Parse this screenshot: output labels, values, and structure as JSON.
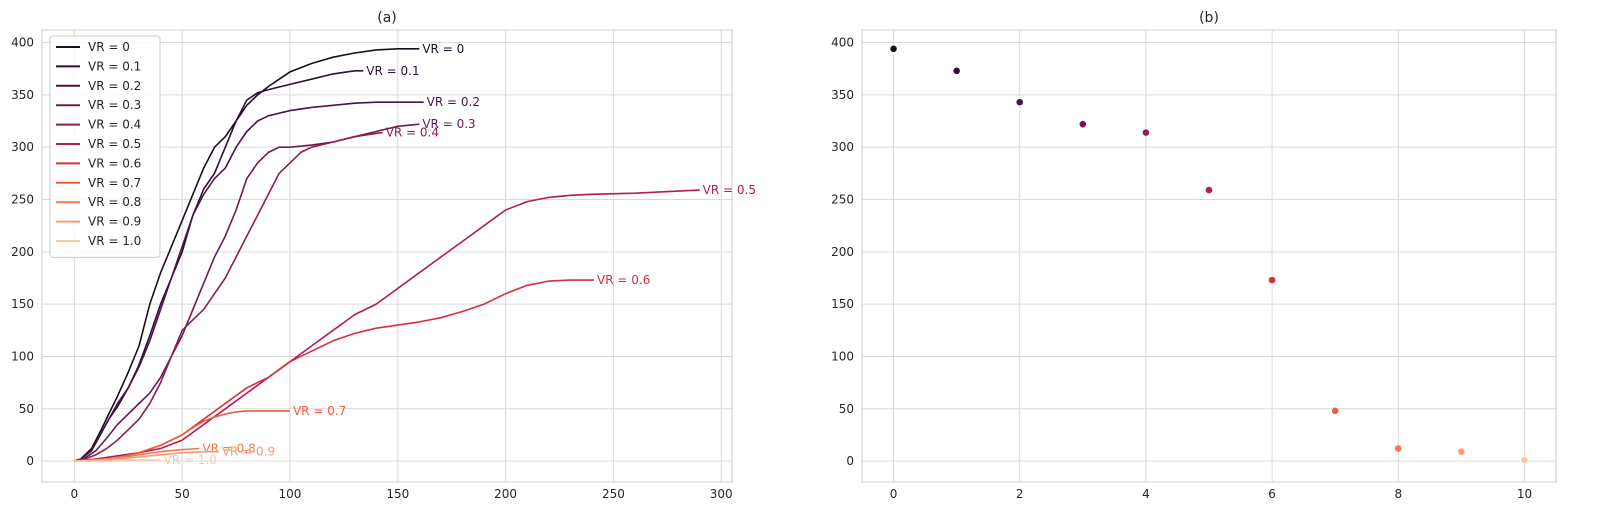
{
  "chart_data": [
    {
      "type": "line",
      "title": "(a)",
      "xlabel": "",
      "ylabel": "",
      "xlim": [
        -15,
        305
      ],
      "ylim": [
        -20,
        412
      ],
      "xticks": [
        0,
        50,
        100,
        150,
        200,
        250,
        300
      ],
      "yticks": [
        0,
        50,
        100,
        150,
        200,
        250,
        300,
        350,
        400
      ],
      "grid": true,
      "legend_position": "top-left",
      "series": [
        {
          "name": "VR = 0",
          "color": "#1a0f21",
          "label": "VR = 0",
          "x": [
            0,
            3,
            8,
            12,
            16,
            20,
            25,
            30,
            35,
            40,
            45,
            50,
            55,
            60,
            65,
            70,
            75,
            80,
            85,
            90,
            95,
            100,
            110,
            120,
            130,
            140,
            150,
            160
          ],
          "y": [
            0,
            2,
            12,
            28,
            45,
            62,
            85,
            110,
            150,
            180,
            205,
            230,
            255,
            280,
            300,
            310,
            325,
            340,
            350,
            358,
            365,
            372,
            380,
            386,
            390,
            393,
            394,
            394
          ]
        },
        {
          "name": "VR = 0.1",
          "color": "#2b1132",
          "label": "VR = 0.1",
          "x": [
            0,
            3,
            8,
            12,
            16,
            20,
            25,
            30,
            35,
            40,
            45,
            50,
            55,
            60,
            65,
            70,
            75,
            80,
            85,
            90,
            100,
            110,
            120,
            130,
            134
          ],
          "y": [
            0,
            2,
            10,
            25,
            40,
            52,
            70,
            92,
            120,
            150,
            175,
            200,
            235,
            260,
            275,
            300,
            325,
            345,
            352,
            355,
            360,
            365,
            370,
            373,
            373
          ]
        },
        {
          "name": "VR = 0.2",
          "color": "#4a1546",
          "label": "VR = 0.2",
          "x": [
            0,
            3,
            8,
            12,
            16,
            20,
            25,
            30,
            35,
            40,
            45,
            50,
            55,
            60,
            65,
            70,
            75,
            80,
            85,
            90,
            100,
            110,
            120,
            130,
            140,
            150,
            162
          ],
          "y": [
            0,
            2,
            10,
            25,
            40,
            55,
            70,
            90,
            115,
            145,
            175,
            205,
            235,
            255,
            270,
            280,
            300,
            315,
            325,
            330,
            335,
            338,
            340,
            342,
            343,
            343,
            343
          ]
        },
        {
          "name": "VR = 0.3",
          "color": "#6c1b52",
          "label": "VR = 0.3",
          "x": [
            0,
            5,
            10,
            15,
            20,
            25,
            30,
            35,
            40,
            45,
            50,
            55,
            60,
            65,
            70,
            75,
            80,
            85,
            90,
            95,
            100,
            110,
            120,
            130,
            140,
            150,
            160
          ],
          "y": [
            0,
            3,
            10,
            22,
            35,
            45,
            55,
            65,
            80,
            100,
            120,
            145,
            170,
            195,
            215,
            240,
            270,
            285,
            295,
            300,
            300,
            302,
            305,
            310,
            315,
            320,
            322
          ]
        },
        {
          "name": "VR = 0.4",
          "color": "#8c1d58",
          "label": "VR = 0.4",
          "x": [
            0,
            5,
            10,
            15,
            20,
            25,
            30,
            35,
            40,
            45,
            50,
            55,
            60,
            65,
            70,
            75,
            80,
            85,
            90,
            95,
            100,
            105,
            110,
            120,
            130,
            143
          ],
          "y": [
            0,
            2,
            6,
            12,
            20,
            30,
            40,
            55,
            75,
            100,
            125,
            135,
            145,
            160,
            175,
            195,
            215,
            235,
            255,
            275,
            285,
            295,
            300,
            305,
            310,
            314
          ]
        },
        {
          "name": "VR = 0.5",
          "color": "#b21c56",
          "label": "VR = 0.5",
          "x": [
            0,
            10,
            20,
            30,
            40,
            50,
            60,
            70,
            80,
            90,
            100,
            110,
            120,
            130,
            140,
            150,
            160,
            170,
            180,
            190,
            200,
            210,
            220,
            230,
            240,
            260,
            280,
            290
          ],
          "y": [
            0,
            2,
            5,
            8,
            12,
            20,
            35,
            50,
            65,
            80,
            95,
            110,
            125,
            140,
            150,
            165,
            180,
            195,
            210,
            225,
            240,
            248,
            252,
            254,
            255,
            256,
            258,
            259
          ]
        },
        {
          "name": "VR = 0.6",
          "color": "#d72e3c",
          "label": "VR = 0.6",
          "x": [
            0,
            10,
            20,
            30,
            40,
            50,
            60,
            70,
            80,
            90,
            100,
            110,
            120,
            130,
            140,
            150,
            160,
            170,
            180,
            190,
            200,
            210,
            220,
            230,
            241
          ],
          "y": [
            0,
            1,
            3,
            8,
            15,
            25,
            40,
            55,
            70,
            80,
            95,
            105,
            115,
            122,
            127,
            130,
            133,
            137,
            143,
            150,
            160,
            168,
            172,
            173,
            173
          ]
        },
        {
          "name": "VR = 0.7",
          "color": "#ed5a3d",
          "label": "VR = 0.7",
          "x": [
            0,
            10,
            20,
            30,
            40,
            50,
            55,
            60,
            65,
            70,
            75,
            80,
            90,
            100
          ],
          "y": [
            0,
            1,
            3,
            8,
            15,
            25,
            32,
            38,
            42,
            45,
            47,
            48,
            48,
            48
          ]
        },
        {
          "name": "VR = 0.8",
          "color": "#f4784e",
          "label": "VR = 0.8",
          "x": [
            0,
            10,
            20,
            30,
            40,
            50,
            58
          ],
          "y": [
            0,
            1,
            3,
            6,
            9,
            11,
            12
          ]
        },
        {
          "name": "VR = 0.9",
          "color": "#f69c73",
          "label": "VR = 0.9",
          "x": [
            0,
            10,
            20,
            30,
            40,
            50,
            60,
            67
          ],
          "y": [
            0,
            1,
            2,
            4,
            6,
            8,
            9,
            9
          ]
        },
        {
          "name": "VR = 1.0",
          "color": "#f9c8a2",
          "label": "VR = 1.0",
          "x": [
            0,
            5,
            10,
            15,
            20,
            25,
            30,
            35,
            40
          ],
          "y": [
            0,
            0,
            0,
            0,
            1,
            1,
            1,
            1,
            1
          ]
        }
      ]
    },
    {
      "type": "scatter",
      "title": "(b)",
      "xlabel": "",
      "ylabel": "",
      "xlim": [
        -0.5,
        10.5
      ],
      "ylim": [
        -20,
        412
      ],
      "xticks": [
        0,
        2,
        4,
        6,
        8,
        10
      ],
      "yticks": [
        0,
        50,
        100,
        150,
        200,
        250,
        300,
        350,
        400
      ],
      "grid": true,
      "points": [
        {
          "x": 0,
          "y": 394,
          "color": "#1a0f21"
        },
        {
          "x": 1,
          "y": 373,
          "color": "#2b1132"
        },
        {
          "x": 2,
          "y": 343,
          "color": "#4a1546"
        },
        {
          "x": 3,
          "y": 322,
          "color": "#6c1b52"
        },
        {
          "x": 4,
          "y": 314,
          "color": "#8c1d58"
        },
        {
          "x": 5,
          "y": 259,
          "color": "#b21c56"
        },
        {
          "x": 6,
          "y": 173,
          "color": "#d72e3c"
        },
        {
          "x": 7,
          "y": 48,
          "color": "#ed5a3d"
        },
        {
          "x": 8,
          "y": 12,
          "color": "#f4784e"
        },
        {
          "x": 9,
          "y": 9,
          "color": "#f69c73"
        },
        {
          "x": 10,
          "y": 1,
          "color": "#f9c8a2"
        }
      ]
    }
  ]
}
